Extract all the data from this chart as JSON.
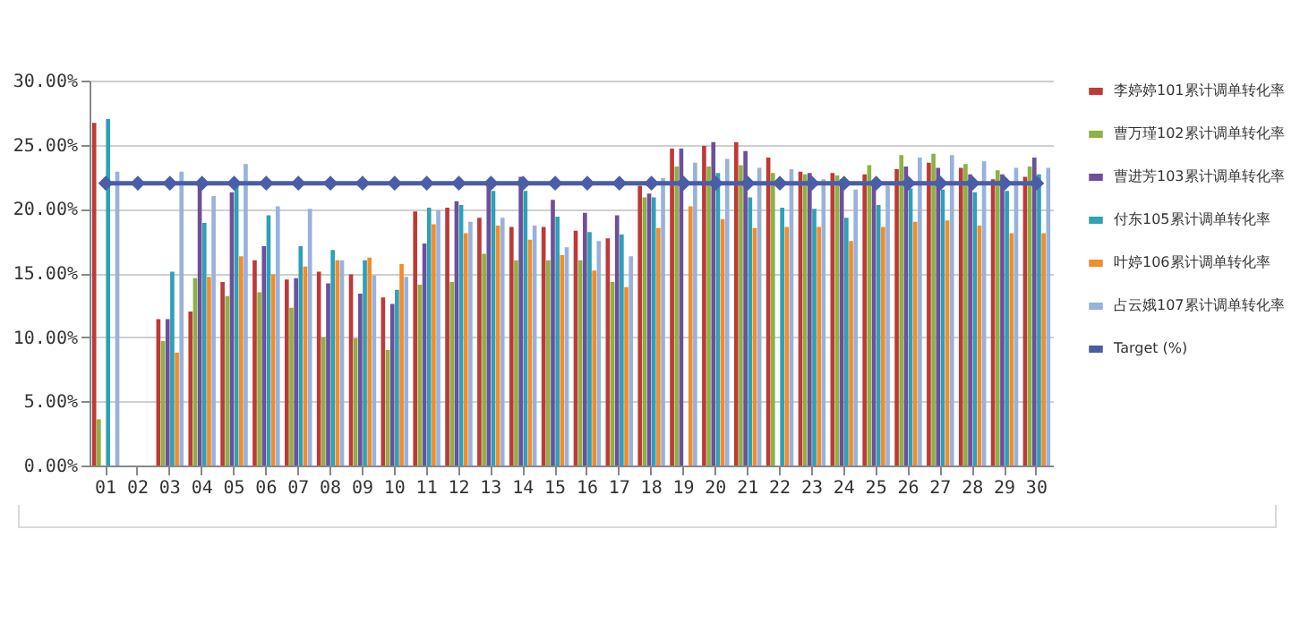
{
  "chart_data": {
    "type": "bar",
    "categories": [
      "01",
      "02",
      "03",
      "04",
      "05",
      "06",
      "07",
      "08",
      "09",
      "10",
      "11",
      "12",
      "13",
      "14",
      "15",
      "16",
      "17",
      "18",
      "19",
      "20",
      "21",
      "22",
      "23",
      "24",
      "25",
      "26",
      "27",
      "28",
      "29",
      "30"
    ],
    "series": [
      {
        "name": "李婷婷101累计调单转化率",
        "color": "#be3a36",
        "values": [
          26.7,
          null,
          11.4,
          12.0,
          14.3,
          16.0,
          14.5,
          15.1,
          14.9,
          13.1,
          19.8,
          20.1,
          19.3,
          18.6,
          18.6,
          18.3,
          17.7,
          21.8,
          24.7,
          24.9,
          25.2,
          24.0,
          22.9,
          22.8,
          22.7,
          23.1,
          23.6,
          23.2,
          22.3,
          22.5
        ]
      },
      {
        "name": "曹万瑾102累计调单转化率",
        "color": "#8db144",
        "values": [
          3.6,
          null,
          9.7,
          14.6,
          13.2,
          13.5,
          12.3,
          10.0,
          9.9,
          9.0,
          14.1,
          14.3,
          16.5,
          16.0,
          16.0,
          16.0,
          14.3,
          20.9,
          23.3,
          23.3,
          23.4,
          22.8,
          22.7,
          22.6,
          23.4,
          24.2,
          24.3,
          23.5,
          23.0,
          23.3
        ]
      },
      {
        "name": "曹进芳103累计调单转化率",
        "color": "#6f4f9a",
        "values": [
          null,
          null,
          11.4,
          22.0,
          21.3,
          17.1,
          14.6,
          14.2,
          13.4,
          12.6,
          17.3,
          20.6,
          22.0,
          22.5,
          20.7,
          19.7,
          19.5,
          21.2,
          24.7,
          25.2,
          24.5,
          null,
          22.8,
          22.3,
          22.0,
          23.3,
          23.2,
          22.7,
          22.7,
          24.0
        ]
      },
      {
        "name": "付东105累计调单转化率",
        "color": "#2fa0b5",
        "values": [
          27.0,
          null,
          15.1,
          18.9,
          22.0,
          19.5,
          17.1,
          16.8,
          16.0,
          13.7,
          20.1,
          20.3,
          21.4,
          21.4,
          19.4,
          18.2,
          18.0,
          20.9,
          null,
          22.8,
          20.9,
          20.1,
          20.0,
          19.3,
          20.3,
          21.6,
          21.5,
          21.3,
          21.4,
          22.7
        ]
      },
      {
        "name": "叶婷106累计调单转化率",
        "color": "#f28c2c",
        "values": [
          null,
          null,
          8.8,
          14.7,
          16.3,
          14.9,
          15.5,
          16.0,
          16.2,
          15.7,
          18.8,
          18.1,
          18.7,
          17.6,
          16.4,
          15.2,
          13.9,
          18.5,
          20.2,
          19.2,
          18.5,
          18.6,
          18.6,
          17.5,
          18.6,
          19.0,
          19.1,
          18.7,
          18.1,
          18.1
        ]
      },
      {
        "name": "占云娥107累计调单转化率",
        "color": "#97b2dc",
        "values": [
          22.9,
          null,
          22.9,
          21.0,
          23.5,
          20.2,
          20.0,
          16.0,
          14.8,
          14.7,
          19.9,
          19.0,
          19.3,
          18.7,
          17.0,
          17.5,
          16.3,
          22.4,
          23.6,
          23.9,
          23.2,
          23.1,
          22.3,
          21.5,
          21.8,
          24.0,
          24.2,
          23.7,
          23.2,
          23.2
        ]
      },
      {
        "name": "Target (%)",
        "color": "#4a5da8",
        "type": "line",
        "marker": "diamond",
        "line_style": "solid",
        "values": [
          22,
          22,
          22,
          22,
          22,
          22,
          22,
          22,
          22,
          22,
          22,
          22,
          22,
          22,
          22,
          22,
          22,
          22,
          22,
          22,
          22,
          22,
          22,
          22,
          22,
          22,
          22,
          22,
          22,
          22
        ]
      }
    ],
    "ylim": [
      0,
      30
    ],
    "yticks": [
      {
        "value": 0,
        "label": "0.00%"
      },
      {
        "value": 5,
        "label": "5.00%"
      },
      {
        "value": 10,
        "label": "10.00%"
      },
      {
        "value": 15,
        "label": "15.00%"
      },
      {
        "value": 20,
        "label": "20.00%"
      },
      {
        "value": 25,
        "label": "25.00%"
      },
      {
        "value": 30,
        "label": "30.00%"
      }
    ],
    "grid": "y",
    "legend": "right"
  }
}
